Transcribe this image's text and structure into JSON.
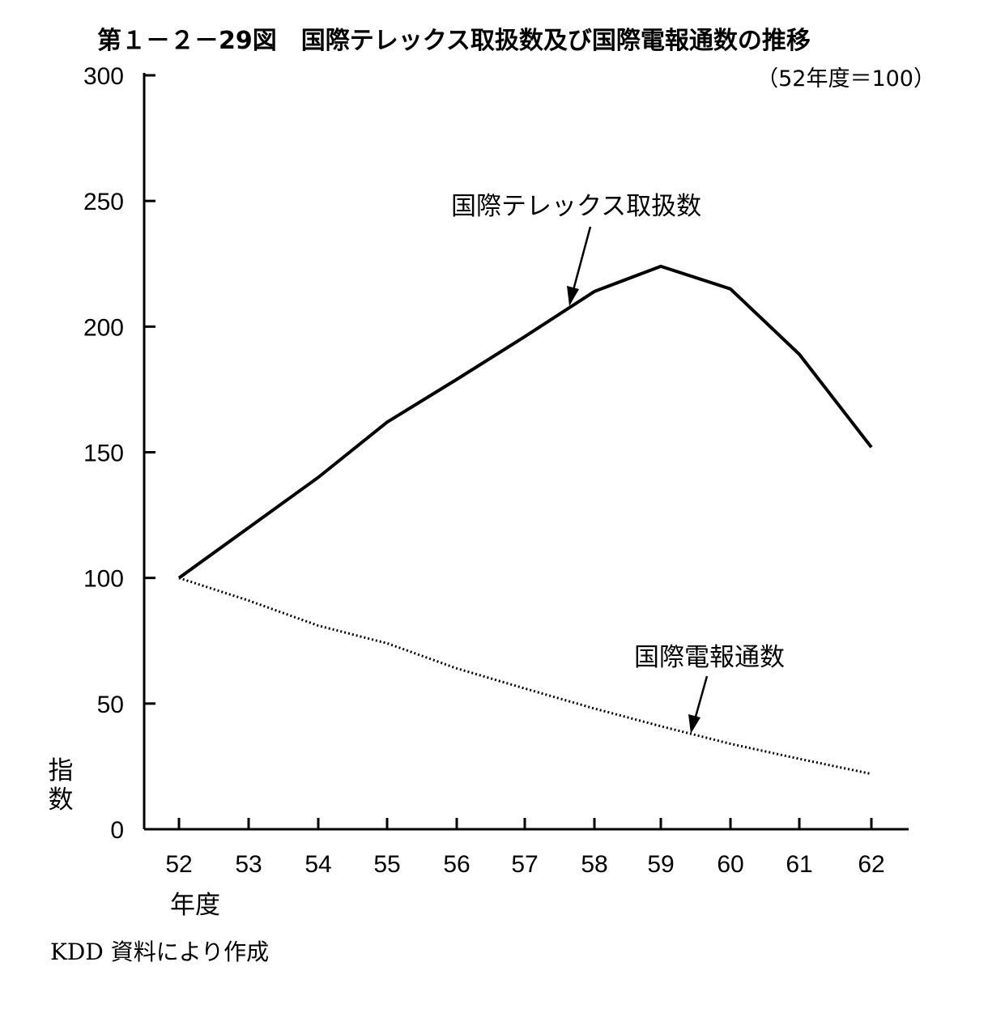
{
  "chart_data": {
    "type": "line",
    "title": "第１－２－29図　国際テレックス取扱数及び国際電報通数の推移",
    "subtitle": "（52年度＝100）",
    "xlabel": "年度",
    "ylabel": "指数",
    "x": [
      "52",
      "53",
      "54",
      "55",
      "56",
      "57",
      "58",
      "59",
      "60",
      "61",
      "62"
    ],
    "ylim": [
      0,
      300
    ],
    "yticks": [
      "0",
      "50",
      "100",
      "150",
      "200",
      "250",
      "300"
    ],
    "grid": false,
    "legend": "none",
    "series": [
      {
        "name": "国際テレックス取扱数",
        "style": "solid",
        "values": [
          100,
          120,
          140,
          162,
          179,
          196,
          214,
          224,
          215,
          189,
          152
        ]
      },
      {
        "name": "国際電報通数",
        "style": "dotted",
        "values": [
          100,
          91,
          81,
          74,
          64,
          56,
          48,
          41,
          34,
          28,
          22
        ]
      }
    ],
    "source": "KDD 資料により作成"
  }
}
